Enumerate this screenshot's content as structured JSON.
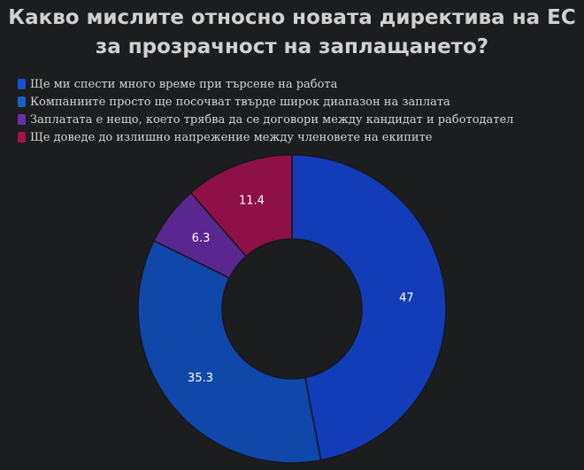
{
  "title": {
    "line1": "Какво мислите относно новата директива на ЕС",
    "line2": "за прозрачност на заплащането?"
  },
  "colors": {
    "background": "#1c1d1f",
    "title": "#d0d0d0",
    "legend_text": "#d4d4d4",
    "slice_border": "#16171a",
    "slice_label": "#ffffff"
  },
  "chart_data": {
    "type": "pie",
    "donut": true,
    "legend_position": "top-left",
    "categories": [
      "Ще ми спести много време при търсене на работа",
      "Компаниите просто ще посочват твърде широк диапазон на заплата",
      "Заплатата е нещо, което трябва да се договори между кандидат и работодател",
      "Ще доведе до излишно напрежение между членовете на екипите"
    ],
    "values": [
      47,
      35.3,
      6.3,
      11.4
    ],
    "labels": [
      "47",
      "35.3",
      "6.3",
      "11.4"
    ],
    "colors": [
      "#123cb8",
      "#0f47ab",
      "#5a2690",
      "#8f1046"
    ],
    "legend_colors": [
      "#1752d4",
      "#1760c4",
      "#6a2fa8",
      "#a31150"
    ]
  }
}
